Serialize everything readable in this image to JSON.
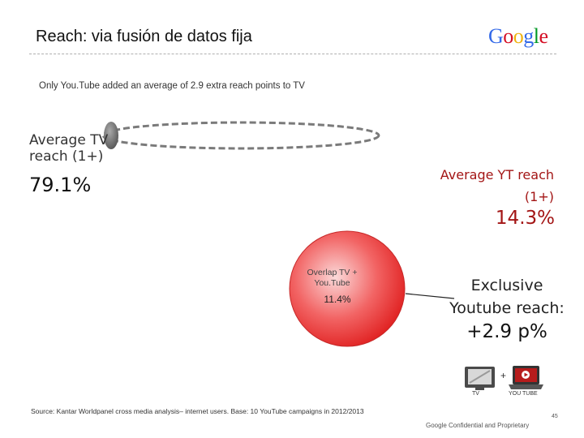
{
  "slide": {
    "title": "Reach: via fusión de datos fija",
    "subtitle": "Only You.Tube added an average of 2.9 extra reach points to TV",
    "tv": {
      "label": "Average TV reach (1+)",
      "value": "79.1%"
    },
    "youtube": {
      "label": "Average YT reach (1+)",
      "value": "14.3%"
    },
    "overlap": {
      "label": "Overlap TV + You.Tube",
      "value": "11.4%"
    },
    "exclusive": {
      "label": "Exclusive Youtube reach:",
      "value": "+2.9 p%"
    },
    "icons": {
      "plus": "+",
      "tv_caption": "TV",
      "youtube_caption": "YOU TUBE"
    },
    "source": "Source: Kantar Worldpanel cross media analysis– internet users. Base: 10 YouTube campaigns in 2012/2013",
    "footer": "Google Confidential and Proprietary",
    "page_number": "45"
  },
  "logo": {
    "letters": [
      "G",
      "o",
      "o",
      "g",
      "l",
      "e"
    ],
    "colors": [
      "#3369e8",
      "#d50f25",
      "#eeb211",
      "#3369e8",
      "#009925",
      "#d50f25"
    ]
  },
  "colors": {
    "accent_red": "#a31515",
    "circle_red": "#ef3e3e",
    "gray_ellipse": "#777777"
  }
}
